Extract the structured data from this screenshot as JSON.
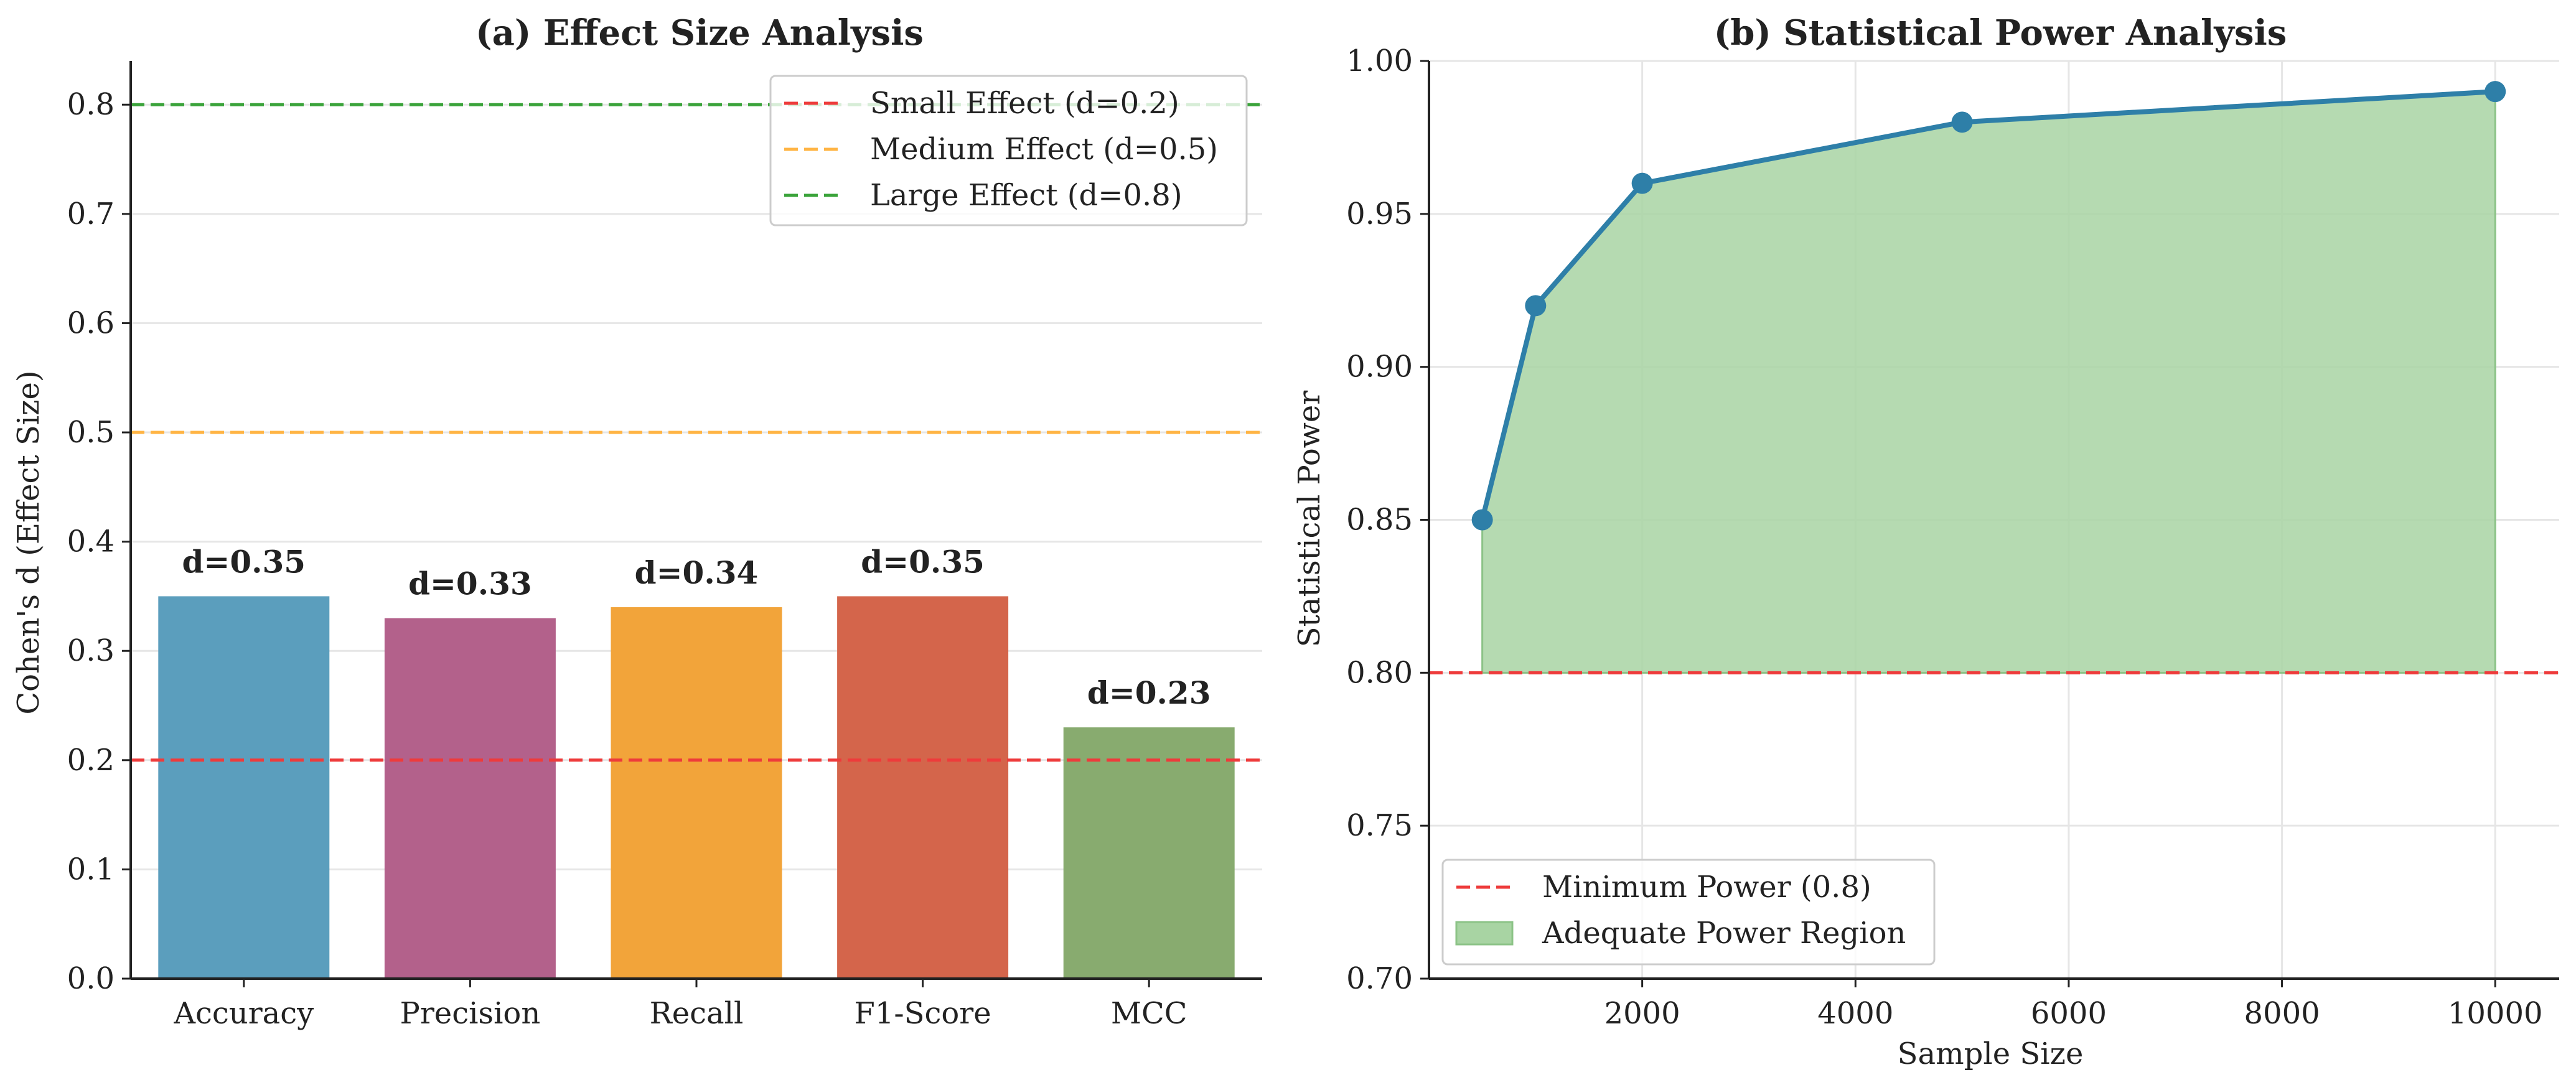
{
  "chart_data": [
    {
      "type": "bar",
      "title": "(a) Effect Size Analysis",
      "xlabel": "",
      "ylabel": "Cohen's d (Effect Size)",
      "ylim": [
        0,
        0.84
      ],
      "yticks": [
        "0.0",
        "0.1",
        "0.2",
        "0.3",
        "0.4",
        "0.5",
        "0.6",
        "0.7",
        "0.8"
      ],
      "categories": [
        "Accuracy",
        "Precision",
        "Recall",
        "F1-Score",
        "MCC"
      ],
      "values": [
        0.35,
        0.33,
        0.34,
        0.35,
        0.23
      ],
      "data_labels": [
        "d=0.35",
        "d=0.33",
        "d=0.34",
        "d=0.35",
        "d=0.23"
      ],
      "bar_colors": [
        "#5b9ebd",
        "#b3618b",
        "#f2a43a",
        "#d4654b",
        "#88ab6f"
      ],
      "grid": "horizontal",
      "legend_position": "top-right",
      "reference_lines": [
        {
          "label": "Small Effect (d=0.2)",
          "y": 0.2,
          "color": "#ee3b3b"
        },
        {
          "label": "Medium Effect (d=0.5)",
          "y": 0.5,
          "color": "#ffb444"
        },
        {
          "label": "Large Effect (d=0.8)",
          "y": 0.8,
          "color": "#3aa33a"
        }
      ]
    },
    {
      "type": "line",
      "title": "(b) Statistical Power Analysis",
      "xlabel": "Sample Size",
      "ylabel": "Statistical Power",
      "xlim": [
        0,
        10600
      ],
      "ylim": [
        0.7,
        1.0
      ],
      "xticks": [
        2000,
        4000,
        6000,
        8000,
        10000
      ],
      "yticks": [
        "0.70",
        "0.75",
        "0.80",
        "0.85",
        "0.90",
        "0.95",
        "1.00"
      ],
      "grid": "both",
      "legend_position": "lower-left",
      "series": [
        {
          "x": [
            500,
            1000,
            2000,
            5000,
            10000
          ],
          "values": [
            0.85,
            0.92,
            0.96,
            0.98,
            0.99
          ],
          "color": "#2e7fa8"
        }
      ],
      "reference_line": {
        "label": "Minimum Power (0.8)",
        "y": 0.8,
        "color": "#ee3b3b"
      },
      "fill_region": {
        "label": "Adequate Power Region",
        "from": 0.8,
        "color": "#a8d4a3"
      }
    }
  ]
}
